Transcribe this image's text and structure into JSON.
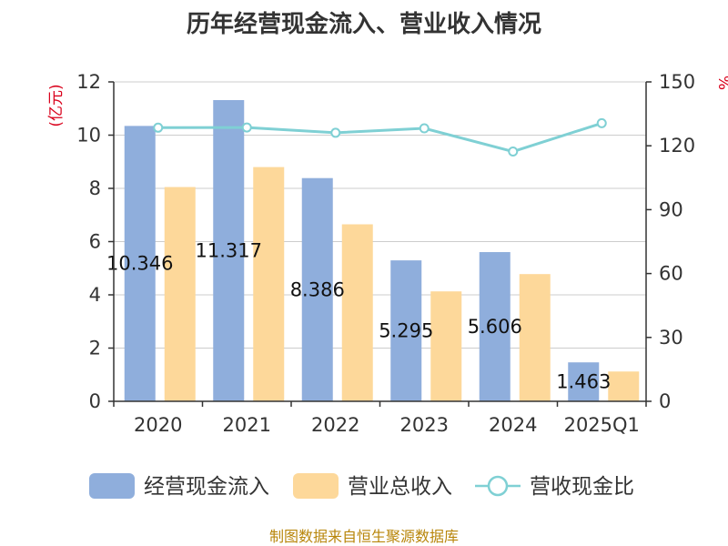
{
  "chart_data": {
    "type": "bar",
    "title": "历年经营现金流入、营业收入情况",
    "categories": [
      "2020",
      "2021",
      "2022",
      "2023",
      "2024",
      "2025Q1"
    ],
    "left_unit": "(亿元)",
    "right_unit": "%",
    "left_ylim": [
      0,
      12
    ],
    "left_ticks": [
      "0",
      "2",
      "4",
      "6",
      "8",
      "10",
      "12"
    ],
    "right_ylim": [
      0,
      150
    ],
    "right_ticks": [
      "0",
      "30",
      "60",
      "90",
      "120",
      "150"
    ],
    "grid": true,
    "legend_position": "bottom",
    "series": [
      {
        "name": "经营现金流入",
        "kind": "bar",
        "axis": "left",
        "color": "#8faedc",
        "values": [
          10.346,
          11.317,
          8.386,
          5.295,
          5.606,
          1.463
        ]
      },
      {
        "name": "营业总收入",
        "kind": "bar",
        "axis": "left",
        "color": "#fdd89a",
        "values": [
          8.05,
          8.8,
          6.65,
          4.13,
          4.78,
          1.12
        ]
      },
      {
        "name": "营收现金比",
        "kind": "line",
        "axis": "right",
        "color": "#7fd0d4",
        "values": [
          128.5,
          128.6,
          126.1,
          128.2,
          117.3,
          130.6
        ]
      }
    ],
    "bar_labels": [
      "10.346",
      "11.317",
      "8.386",
      "5.295",
      "5.606",
      "1.463"
    ]
  },
  "source": "制图数据来自恒生聚源数据库"
}
